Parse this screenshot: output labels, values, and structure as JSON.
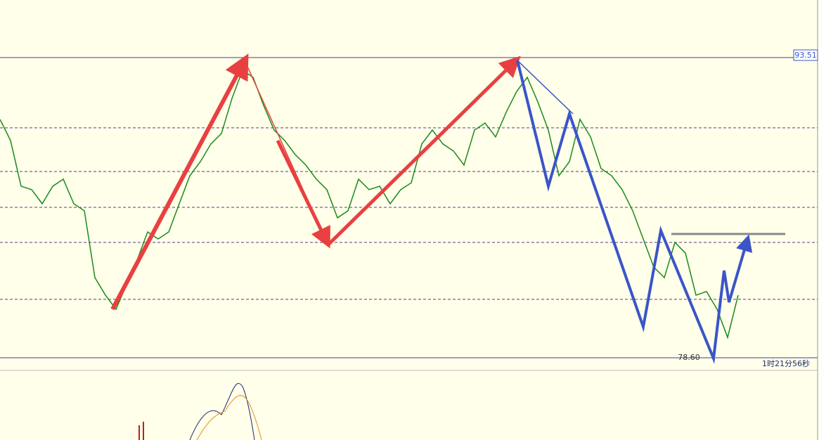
{
  "chart_data": {
    "type": "line",
    "price_label": "93.51",
    "price_level": 93.51,
    "low_label": "78.60",
    "low_level": 78.6,
    "countdown": "1时21分56秒",
    "ylim": [
      78.6,
      96.37
    ],
    "levels": [
      90.02,
      87.85,
      86.07,
      84.33,
      81.5
    ],
    "resistance": 84.75,
    "color": "#1a8a1a",
    "categories": [
      null,
      null,
      null,
      null,
      null,
      null,
      null,
      null,
      null,
      null,
      null,
      null,
      null,
      null,
      null,
      null,
      null,
      null,
      null,
      null,
      null,
      null,
      null,
      null,
      null,
      null,
      null,
      null,
      null,
      null,
      null,
      null,
      null,
      null,
      null,
      null,
      null,
      null,
      null,
      null,
      null,
      null,
      null,
      null,
      null,
      null,
      null,
      null,
      null,
      null,
      null,
      null,
      null,
      null,
      null,
      null,
      null,
      null,
      null,
      null,
      null,
      null,
      null,
      null,
      null,
      null,
      null,
      null,
      null,
      null,
      null
    ],
    "values": [
      90.44,
      89.39,
      87.12,
      86.95,
      86.25,
      87.12,
      87.47,
      86.25,
      85.9,
      82.58,
      81.71,
      81.01,
      82.23,
      83.45,
      84.85,
      84.5,
      84.85,
      86.25,
      87.64,
      88.34,
      89.22,
      89.74,
      91.48,
      92.88,
      92.53,
      91.13,
      89.91,
      89.39,
      88.69,
      88.17,
      87.47,
      86.95,
      85.55,
      85.9,
      87.47,
      86.95,
      87.12,
      86.25,
      86.95,
      87.29,
      89.22,
      89.91,
      89.22,
      88.87,
      88.17,
      89.91,
      90.26,
      89.57,
      90.79,
      91.83,
      92.53,
      91.31,
      89.91,
      87.64,
      88.34,
      90.44,
      89.57,
      88.0,
      87.64,
      86.95,
      85.9,
      84.5,
      83.1,
      82.58,
      84.33,
      83.8,
      81.71,
      81.89,
      81.01,
      79.61,
      81.71
    ]
  }
}
